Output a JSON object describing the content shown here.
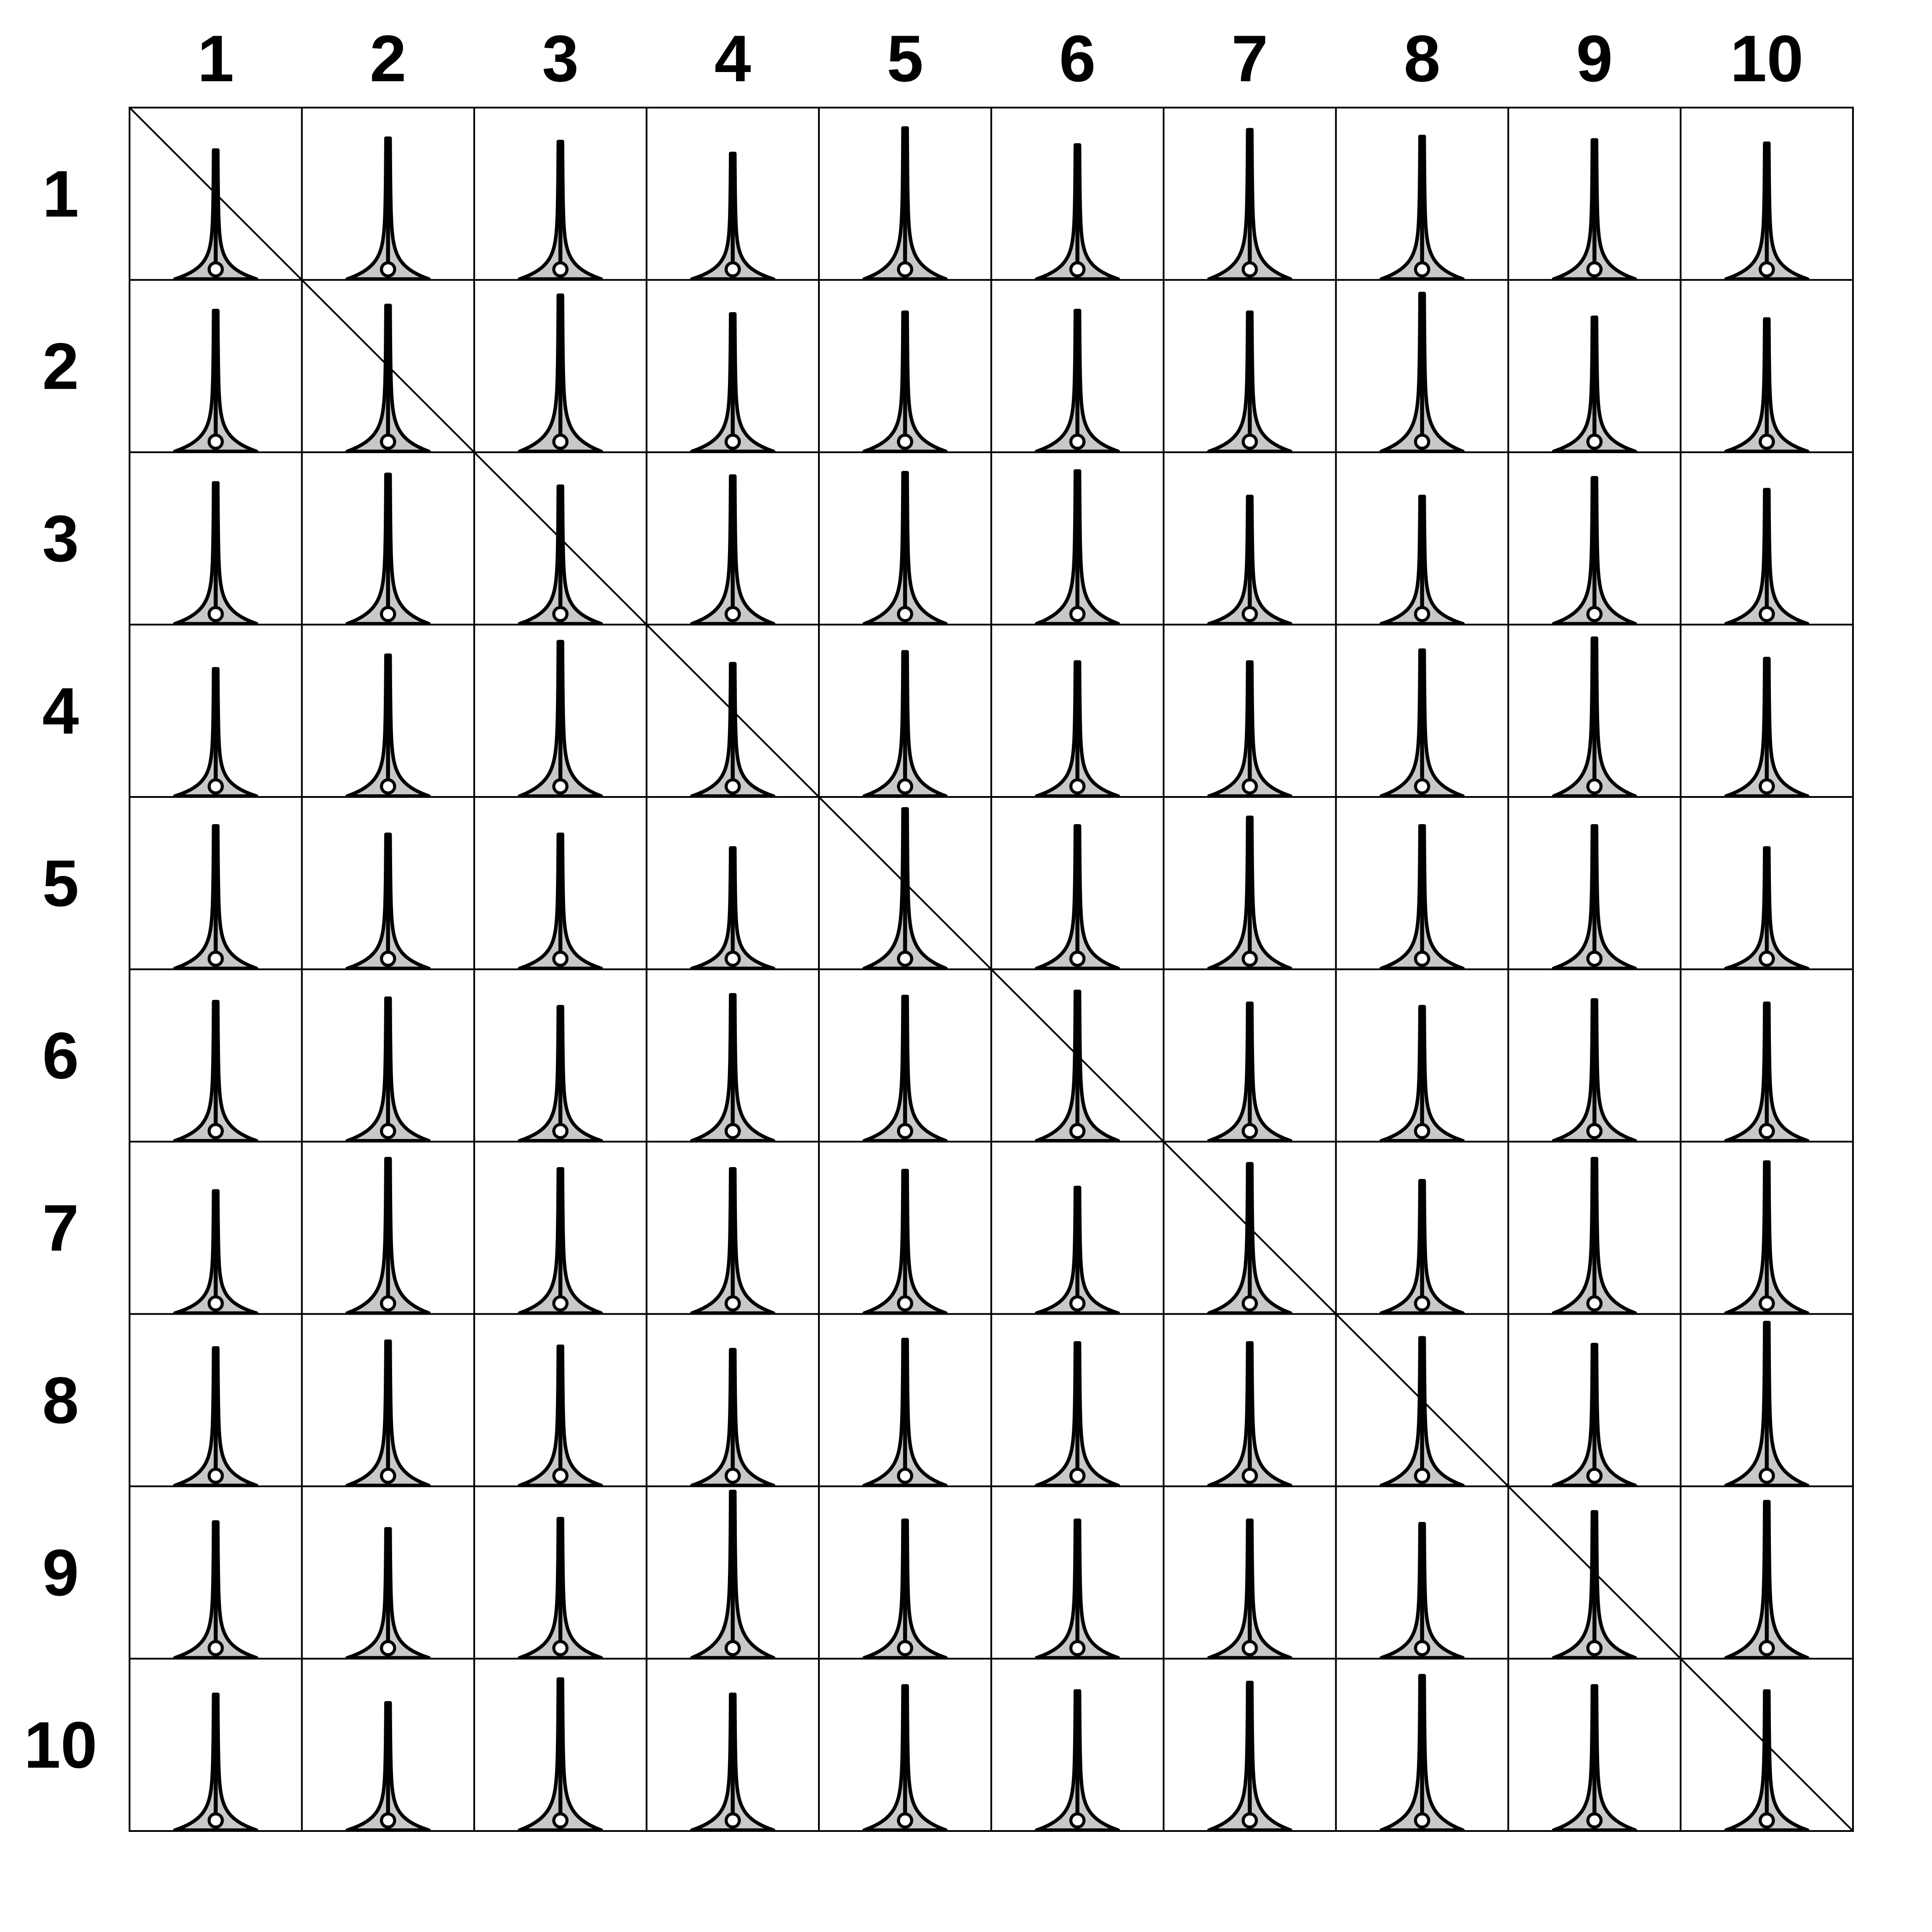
{
  "chart_data": {
    "type": "violin",
    "layout": "10x10 matrix of violin plots with a diagonal line",
    "column_labels": [
      "1",
      "2",
      "3",
      "4",
      "5",
      "6",
      "7",
      "8",
      "9",
      "10"
    ],
    "row_labels": [
      "1",
      "2",
      "3",
      "4",
      "5",
      "6",
      "7",
      "8",
      "9",
      "10"
    ],
    "fill_color": "#c8c8c8",
    "line_color": "#000000",
    "violin_top": [
      [
        0.76,
        0.83,
        0.81,
        0.74,
        0.89,
        0.79,
        0.88,
        0.84,
        0.82,
        0.8
      ],
      [
        0.83,
        0.86,
        0.92,
        0.81,
        0.82,
        0.83,
        0.82,
        0.93,
        0.79,
        0.78
      ],
      [
        0.83,
        0.88,
        0.81,
        0.87,
        0.89,
        0.9,
        0.75,
        0.75,
        0.86,
        0.79
      ],
      [
        0.75,
        0.83,
        0.91,
        0.78,
        0.85,
        0.79,
        0.79,
        0.86,
        0.93,
        0.81
      ],
      [
        0.84,
        0.79,
        0.79,
        0.71,
        0.94,
        0.84,
        0.89,
        0.84,
        0.84,
        0.71
      ],
      [
        0.82,
        0.84,
        0.79,
        0.86,
        0.85,
        0.88,
        0.81,
        0.79,
        0.83,
        0.81
      ],
      [
        0.72,
        0.91,
        0.85,
        0.85,
        0.84,
        0.74,
        0.88,
        0.78,
        0.91,
        0.89
      ],
      [
        0.81,
        0.85,
        0.82,
        0.8,
        0.86,
        0.84,
        0.84,
        0.87,
        0.83,
        0.96
      ],
      [
        0.8,
        0.76,
        0.82,
        0.98,
        0.81,
        0.81,
        0.81,
        0.79,
        0.86,
        0.92
      ],
      [
        0.8,
        0.75,
        0.89,
        0.8,
        0.85,
        0.82,
        0.87,
        0.91,
        0.85,
        0.82
      ]
    ]
  }
}
